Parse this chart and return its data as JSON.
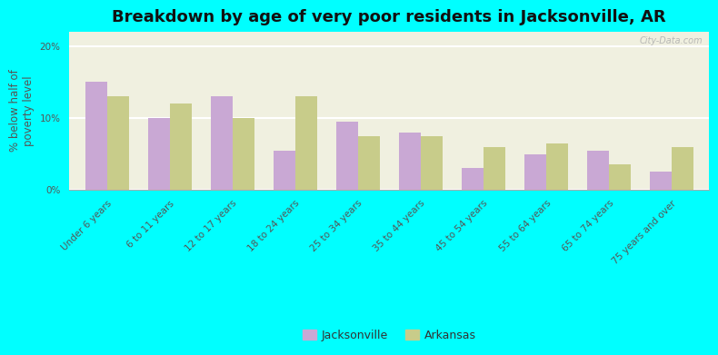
{
  "title": "Breakdown by age of very poor residents in Jacksonville, AR",
  "ylabel": "% below half of\npoverty level",
  "categories": [
    "Under 6 years",
    "6 to 11 years",
    "12 to 17 years",
    "18 to 24 years",
    "25 to 34 years",
    "35 to 44 years",
    "45 to 54 years",
    "55 to 64 years",
    "65 to 74 years",
    "75 years and over"
  ],
  "jacksonville": [
    15.0,
    10.0,
    13.0,
    5.5,
    9.5,
    8.0,
    3.0,
    5.0,
    5.5,
    2.5
  ],
  "arkansas": [
    13.0,
    12.0,
    10.0,
    13.0,
    7.5,
    7.5,
    6.0,
    6.5,
    3.5,
    6.0
  ],
  "jacksonville_color": "#c9a8d4",
  "arkansas_color": "#c8cc8a",
  "background_color": "#00ffff",
  "plot_bg": "#f0f0e0",
  "title_fontsize": 13,
  "ylabel_fontsize": 8.5,
  "tick_fontsize": 7.5,
  "legend_fontsize": 9,
  "ylim": [
    0,
    22
  ],
  "yticks": [
    0,
    10,
    20
  ],
  "ytick_labels": [
    "0%",
    "10%",
    "20%"
  ],
  "watermark": "City-Data.com",
  "bar_width": 0.35
}
